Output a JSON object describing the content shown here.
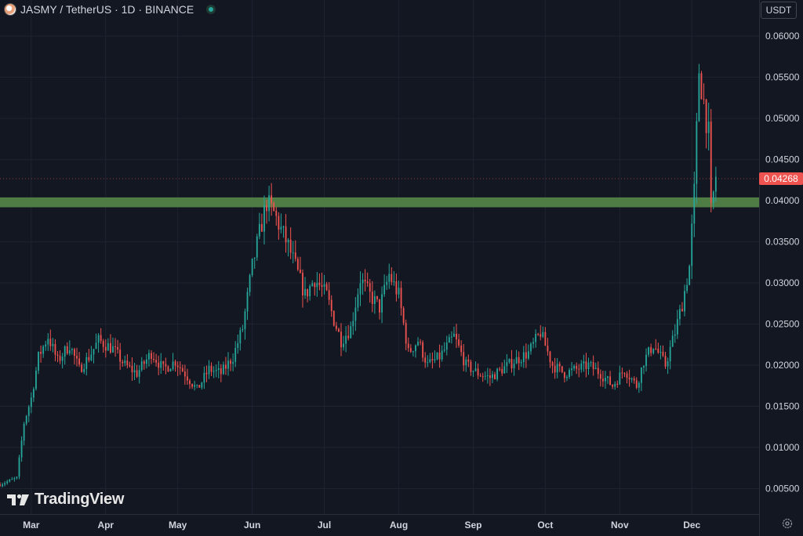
{
  "header": {
    "title": "JASMY / TetherUS · 1D · BINANCE"
  },
  "price_axis": {
    "unit_label": "USDT",
    "current_price_label": "0.04268"
  },
  "watermark": {
    "brand": "TradingView"
  },
  "icons": {
    "symbol": "jasmy-coin-icon",
    "live": "live-status-icon",
    "logo": "tradingview-logo-icon",
    "settings": "gear-icon"
  },
  "colors": {
    "background": "#131722",
    "up": "#26a69a",
    "down": "#ef5350",
    "zone": "#4f7c45",
    "grid": "#1f2330",
    "text": "#d1d4dc"
  },
  "chart_data": {
    "type": "candlestick",
    "x_tick_labels": [
      "Mar",
      "Apr",
      "May",
      "Jun",
      "Jul",
      "Aug",
      "Sep",
      "Oct",
      "Nov",
      "Dec"
    ],
    "y_tick_labels": [
      "0.06000",
      "0.05500",
      "0.05000",
      "0.04500",
      "0.04000",
      "0.03500",
      "0.03000",
      "0.02500",
      "0.02000",
      "0.01500",
      "0.01000",
      "0.00500"
    ],
    "ylim": [
      0.0019,
      0.0644
    ],
    "y_ticks": [
      0.06,
      0.055,
      0.05,
      0.045,
      0.04,
      0.035,
      0.03,
      0.025,
      0.02,
      0.015,
      0.01,
      0.005
    ],
    "x_start": "2024-02-17",
    "x_end": "2024-12-29",
    "month_ticks": [
      "2024-03-01",
      "2024-04-01",
      "2024-05-01",
      "2024-06-01",
      "2024-07-01",
      "2024-08-01",
      "2024-09-01",
      "2024-10-01",
      "2024-11-01",
      "2024-12-01"
    ],
    "grid": true,
    "support_zone": [
      0.0392,
      0.0404
    ],
    "last_price": 0.04268,
    "close_path": [
      [
        "2024-02-17",
        0.0055
      ],
      [
        "2024-02-24",
        0.0063
      ],
      [
        "2024-02-27",
        0.013
      ],
      [
        "2024-03-01",
        0.016
      ],
      [
        "2024-03-04",
        0.021
      ],
      [
        "2024-03-08",
        0.0235
      ],
      [
        "2024-03-12",
        0.0205
      ],
      [
        "2024-03-17",
        0.0225
      ],
      [
        "2024-03-21",
        0.0195
      ],
      [
        "2024-03-25",
        0.021
      ],
      [
        "2024-03-29",
        0.023
      ],
      [
        "2024-04-04",
        0.022
      ],
      [
        "2024-04-09",
        0.02
      ],
      [
        "2024-04-14",
        0.019
      ],
      [
        "2024-04-20",
        0.0215
      ],
      [
        "2024-04-25",
        0.0195
      ],
      [
        "2024-04-30",
        0.0205
      ],
      [
        "2024-05-04",
        0.019
      ],
      [
        "2024-05-09",
        0.017
      ],
      [
        "2024-05-14",
        0.0195
      ],
      [
        "2024-05-19",
        0.019
      ],
      [
        "2024-05-24",
        0.021
      ],
      [
        "2024-05-28",
        0.0245
      ],
      [
        "2024-06-01",
        0.032
      ],
      [
        "2024-06-04",
        0.036
      ],
      [
        "2024-06-07",
        0.0398
      ],
      [
        "2024-06-10",
        0.0385
      ],
      [
        "2024-06-13",
        0.0365
      ],
      [
        "2024-06-16",
        0.0345
      ],
      [
        "2024-06-19",
        0.032
      ],
      [
        "2024-06-23",
        0.0285
      ],
      [
        "2024-06-27",
        0.0305
      ],
      [
        "2024-07-02",
        0.0285
      ],
      [
        "2024-07-05",
        0.0255
      ],
      [
        "2024-07-08",
        0.023
      ],
      [
        "2024-07-12",
        0.0245
      ],
      [
        "2024-07-16",
        0.0305
      ],
      [
        "2024-07-20",
        0.0285
      ],
      [
        "2024-07-24",
        0.027
      ],
      [
        "2024-07-28",
        0.031
      ],
      [
        "2024-08-01",
        0.0285
      ],
      [
        "2024-08-05",
        0.0215
      ],
      [
        "2024-08-09",
        0.023
      ],
      [
        "2024-08-13",
        0.02
      ],
      [
        "2024-08-18",
        0.021
      ],
      [
        "2024-08-24",
        0.0235
      ],
      [
        "2024-08-29",
        0.02
      ],
      [
        "2024-09-03",
        0.019
      ],
      [
        "2024-09-08",
        0.0185
      ],
      [
        "2024-09-13",
        0.0195
      ],
      [
        "2024-09-18",
        0.0205
      ],
      [
        "2024-09-24",
        0.0215
      ],
      [
        "2024-09-29",
        0.024
      ],
      [
        "2024-10-04",
        0.02
      ],
      [
        "2024-10-09",
        0.019
      ],
      [
        "2024-10-14",
        0.0195
      ],
      [
        "2024-10-19",
        0.02
      ],
      [
        "2024-10-24",
        0.019
      ],
      [
        "2024-10-29",
        0.0175
      ],
      [
        "2024-11-03",
        0.0195
      ],
      [
        "2024-11-08",
        0.0175
      ],
      [
        "2024-11-11",
        0.0205
      ],
      [
        "2024-11-15",
        0.0225
      ],
      [
        "2024-11-20",
        0.02
      ],
      [
        "2024-11-24",
        0.024
      ],
      [
        "2024-11-27",
        0.0275
      ],
      [
        "2024-11-30",
        0.032
      ],
      [
        "2024-12-02",
        0.041
      ],
      [
        "2024-12-04",
        0.056
      ],
      [
        "2024-12-06",
        0.052
      ],
      [
        "2024-12-08",
        0.048
      ],
      [
        "2024-12-09",
        0.0385
      ],
      [
        "2024-12-11",
        0.043
      ]
    ]
  }
}
